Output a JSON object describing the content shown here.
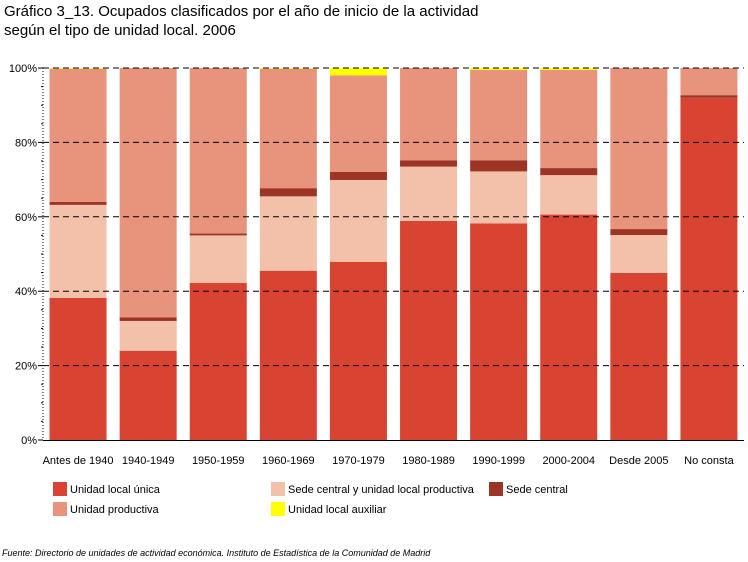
{
  "title": {
    "line1": "Gráfico 3_13. Ocupados clasificados por el año de inicio de la actividad",
    "line2": "según el tipo de unidad local. 2006"
  },
  "colors": {
    "unica": "#d94332",
    "sede_productiva": "#f3c0a9",
    "sede_central": "#9e3426",
    "productiva": "#e8937c",
    "auxiliar": "#ffff00"
  },
  "chart_data": {
    "type": "bar",
    "stacked": true,
    "percent": true,
    "categories": [
      "Antes de 1940",
      "1940-1949",
      "1950-1959",
      "1960-1969",
      "1970-1979",
      "1980-1989",
      "1990-1999",
      "2000-2004",
      "Desde 2005",
      "No consta"
    ],
    "yticks": [
      "0%",
      "20%",
      "40%",
      "60%",
      "80%",
      "100%"
    ],
    "ylim": [
      0,
      100
    ],
    "grid": true,
    "legend_position": "bottom",
    "series": [
      {
        "name": "Unidad local única",
        "color_key": "unica",
        "values": [
          38.2,
          24,
          42.2,
          45.5,
          47.9,
          58.9,
          58.2,
          60.6,
          44.9,
          92
        ]
      },
      {
        "name": "Sede central y unidad local productiva",
        "color_key": "sede_productiva",
        "values": [
          25,
          8,
          12.8,
          20,
          22,
          14.6,
          14,
          10.6,
          10.2,
          0
        ]
      },
      {
        "name": "Sede central",
        "color_key": "sede_central",
        "values": [
          0.8,
          1,
          0.5,
          2.2,
          2.2,
          1.7,
          3,
          1.9,
          1.6,
          0.7
        ]
      },
      {
        "name": "Unidad productiva",
        "color_key": "productiva",
        "values": [
          35.8,
          67,
          44.5,
          32.1,
          25.9,
          24.8,
          24.3,
          26.4,
          43.3,
          7.3
        ]
      },
      {
        "name": "Unidad local auxiliar",
        "color_key": "auxiliar",
        "values": [
          0.2,
          0,
          0,
          0.2,
          2,
          0,
          0.5,
          0.5,
          0,
          0
        ]
      }
    ]
  },
  "legend": [
    {
      "label": "Unidad local única",
      "color_key": "unica"
    },
    {
      "label": "Sede central y unidad local productiva",
      "color_key": "sede_productiva"
    },
    {
      "label": "Sede central",
      "color_key": "sede_central"
    },
    {
      "label": "Unidad productiva",
      "color_key": "productiva"
    },
    {
      "label": "Unidad local auxiliar",
      "color_key": "auxiliar"
    }
  ],
  "source": "Fuente: Directorio de unidades de actividad económica. Instituto de Estadística de la Comunidad de Madrid"
}
